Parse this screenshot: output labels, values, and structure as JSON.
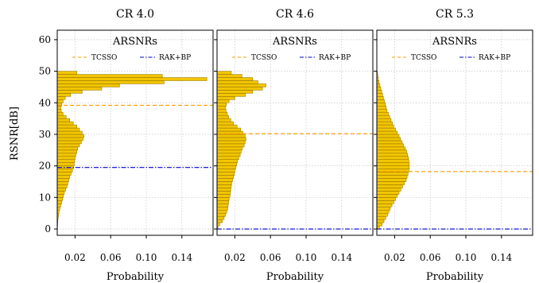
{
  "figure": {
    "ylabel": "RSNR[dB]",
    "xlabel": "Probability",
    "legend_title": "ARSNRs",
    "legend_labels": [
      "TCSSO",
      "RAK+BP"
    ]
  },
  "colors": {
    "bar_fill": "#f2c500",
    "bar_edge": "#8a6d00",
    "tcsso_line": "#ff9900",
    "rakbp_line": "#0000cc",
    "grid": "#bbbbbb"
  },
  "chart_data": [
    {
      "type": "bar",
      "orientation": "horizontal",
      "title": "CR    4.0",
      "xlabel": "Probability",
      "ylabel": "RSNR[dB]",
      "xlim": [
        0,
        0.175
      ],
      "ylim": [
        -2,
        63
      ],
      "xticks": [
        0.02,
        0.06,
        0.1,
        0.14
      ],
      "xtick_labels": [
        "0.02",
        "0.06",
        "0.10",
        "0.14"
      ],
      "yticks": [
        0,
        10,
        20,
        30,
        40,
        50,
        60
      ],
      "grid": true,
      "legend_position": "top",
      "bin_width": 1,
      "bins_y_start": [
        0,
        1,
        2,
        3,
        4,
        5,
        6,
        7,
        8,
        9,
        10,
        11,
        12,
        13,
        14,
        15,
        16,
        17,
        18,
        19,
        20,
        21,
        22,
        23,
        24,
        25,
        26,
        27,
        28,
        29,
        30,
        31,
        32,
        33,
        34,
        35,
        36,
        37,
        38,
        39,
        40,
        41,
        42,
        43,
        44,
        45,
        46,
        47,
        48,
        49
      ],
      "values": [
        0.0003,
        0.0005,
        0.0007,
        0.001,
        0.0015,
        0.002,
        0.003,
        0.004,
        0.005,
        0.006,
        0.007,
        0.008,
        0.0095,
        0.011,
        0.012,
        0.013,
        0.014,
        0.0155,
        0.017,
        0.018,
        0.019,
        0.0195,
        0.02,
        0.021,
        0.022,
        0.023,
        0.025,
        0.027,
        0.029,
        0.03,
        0.028,
        0.025,
        0.022,
        0.018,
        0.014,
        0.01,
        0.0065,
        0.0045,
        0.004,
        0.005,
        0.0065,
        0.009,
        0.015,
        0.028,
        0.05,
        0.07,
        0.12,
        0.168,
        0.118,
        0.022
      ],
      "series": [
        {
          "name": "TCSSO",
          "style": "dashed",
          "value": 39.2
        },
        {
          "name": "RAK+BP",
          "style": "dashdot",
          "value": 19.5
        }
      ]
    },
    {
      "type": "bar",
      "orientation": "horizontal",
      "title": "CR    4.6",
      "xlabel": "Probability",
      "ylabel": "RSNR[dB]",
      "xlim": [
        0,
        0.175
      ],
      "ylim": [
        -2,
        63
      ],
      "xticks": [
        0.02,
        0.06,
        0.1,
        0.14
      ],
      "xtick_labels": [
        "0.02",
        "0.06",
        "0.10",
        "0.14"
      ],
      "yticks": [
        0,
        10,
        20,
        30,
        40,
        50,
        60
      ],
      "grid": true,
      "legend_position": "top",
      "bin_width": 1,
      "bins_y_start": [
        0,
        1,
        2,
        3,
        4,
        5,
        6,
        7,
        8,
        9,
        10,
        11,
        12,
        13,
        14,
        15,
        16,
        17,
        18,
        19,
        20,
        21,
        22,
        23,
        24,
        25,
        26,
        27,
        28,
        29,
        30,
        31,
        32,
        33,
        34,
        35,
        36,
        37,
        38,
        39,
        40,
        41,
        42,
        43,
        44,
        45,
        46,
        47,
        48,
        49
      ],
      "values": [
        0.001,
        0.003,
        0.006,
        0.008,
        0.0095,
        0.011,
        0.012,
        0.0125,
        0.013,
        0.0135,
        0.0145,
        0.015,
        0.0155,
        0.016,
        0.0165,
        0.0175,
        0.0185,
        0.0195,
        0.02,
        0.021,
        0.022,
        0.023,
        0.0245,
        0.026,
        0.027,
        0.0285,
        0.0305,
        0.0315,
        0.0325,
        0.0315,
        0.029,
        0.0265,
        0.0225,
        0.0185,
        0.0155,
        0.013,
        0.0115,
        0.01,
        0.0095,
        0.0105,
        0.0135,
        0.02,
        0.032,
        0.04,
        0.051,
        0.055,
        0.046,
        0.04,
        0.028,
        0.016
      ],
      "series": [
        {
          "name": "TCSSO",
          "style": "dashed",
          "value": 30.2
        },
        {
          "name": "RAK+BP",
          "style": "dashdot",
          "value": 0
        }
      ]
    },
    {
      "type": "bar",
      "orientation": "horizontal",
      "title": "CR    5.3",
      "xlabel": "Probability",
      "ylabel": "RSNR[dB]",
      "xlim": [
        0,
        0.175
      ],
      "ylim": [
        -2,
        63
      ],
      "xticks": [
        0.02,
        0.06,
        0.1,
        0.14
      ],
      "xtick_labels": [
        "0.02",
        "0.06",
        "0.10",
        "0.14"
      ],
      "yticks": [
        0,
        10,
        20,
        30,
        40,
        50,
        60
      ],
      "grid": true,
      "legend_position": "top",
      "bin_width": 1,
      "bins_y_start": [
        0,
        1,
        2,
        3,
        4,
        5,
        6,
        7,
        8,
        9,
        10,
        11,
        12,
        13,
        14,
        15,
        16,
        17,
        18,
        19,
        20,
        21,
        22,
        23,
        24,
        25,
        26,
        27,
        28,
        29,
        30,
        31,
        32,
        33,
        34,
        35,
        36,
        37,
        38,
        39,
        40,
        41,
        42,
        43,
        44,
        45,
        46,
        47,
        48,
        49
      ],
      "values": [
        0.003,
        0.006,
        0.008,
        0.01,
        0.012,
        0.0135,
        0.015,
        0.017,
        0.019,
        0.021,
        0.023,
        0.025,
        0.027,
        0.029,
        0.031,
        0.033,
        0.034,
        0.035,
        0.036,
        0.0365,
        0.0365,
        0.036,
        0.0355,
        0.0345,
        0.0335,
        0.032,
        0.03,
        0.0285,
        0.0265,
        0.025,
        0.023,
        0.021,
        0.019,
        0.0175,
        0.016,
        0.0145,
        0.013,
        0.0115,
        0.0105,
        0.0095,
        0.0085,
        0.0075,
        0.0065,
        0.0055,
        0.0045,
        0.0035,
        0.0025,
        0.0018,
        0.0012,
        0.0006
      ],
      "series": [
        {
          "name": "TCSSO",
          "style": "dashed",
          "value": 18.2
        },
        {
          "name": "RAK+BP",
          "style": "dashdot",
          "value": 0
        }
      ]
    }
  ]
}
